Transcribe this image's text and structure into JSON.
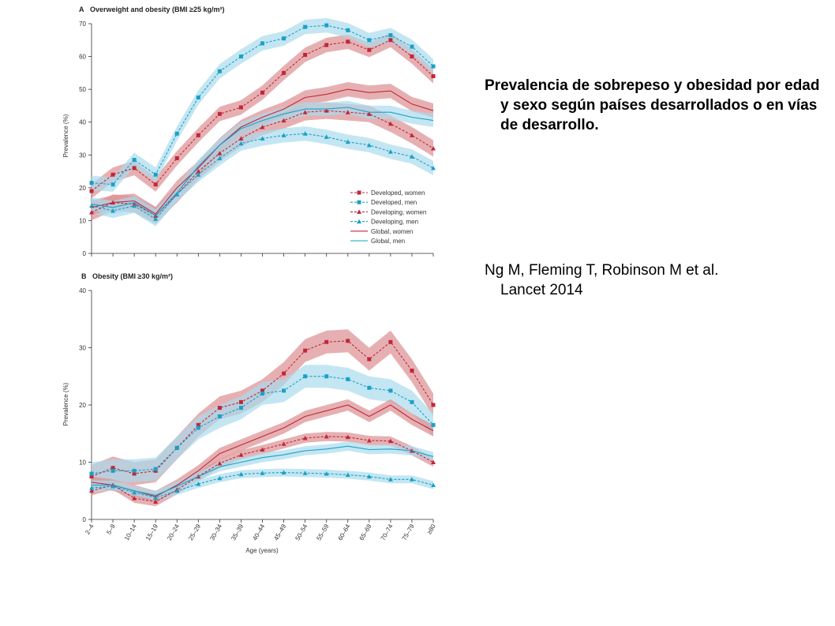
{
  "slide": {
    "heading": "Prevalencia de sobrepeso y obesidad por edad y sexo según países desarrollados o en vías de desarrollo.",
    "citation_line1": "Ng M, Fleming T, Robinson M et al.",
    "citation_line2": "Lancet 2014"
  },
  "colors": {
    "women": "#c0273a",
    "women_band": "#dc8e92",
    "men": "#1aa0c8",
    "men_band": "#a9dcec"
  },
  "chart_data": [
    {
      "type": "line",
      "panel_letter": "A",
      "title": "Overweight and obesity (BMI ≥25 kg/m²)",
      "xlabel": "",
      "ylabel": "Prevalence (%)",
      "ylim": [
        0,
        70
      ],
      "yticks": [
        "0",
        "10",
        "20",
        "30",
        "40",
        "50",
        "60",
        "70"
      ],
      "x": [
        "2–4",
        "5–9",
        "10–14",
        "15–19",
        "20–24",
        "25–29",
        "30–34",
        "35–39",
        "40–44",
        "45–49",
        "50–54",
        "55–59",
        "60–64",
        "65–69",
        "70–74",
        "75–79",
        "≥80"
      ],
      "legend": "inside-right",
      "series": [
        {
          "name": "Developed, women",
          "style": "dashed",
          "marker": "square",
          "color_key": "women",
          "values": [
            19,
            24,
            26,
            21,
            29,
            36,
            42.5,
            44.5,
            49,
            55,
            60.5,
            63.5,
            64.5,
            62,
            65,
            60,
            54
          ],
          "band": 2.2
        },
        {
          "name": "Developed, men",
          "style": "dashed",
          "marker": "square",
          "color_key": "men",
          "values": [
            21.5,
            21,
            28.5,
            24,
            36.5,
            47.5,
            55.5,
            60,
            64,
            65.5,
            69,
            69.5,
            68,
            65,
            66.5,
            63,
            57
          ],
          "band": 2.2
        },
        {
          "name": "Developing, women",
          "style": "dashed",
          "marker": "triangle",
          "color_key": "women",
          "values": [
            12.5,
            15.5,
            15,
            11.5,
            18,
            25,
            30.5,
            35,
            38.5,
            40.5,
            43,
            43.5,
            43,
            42.5,
            39.5,
            36,
            32
          ],
          "band": 2.5
        },
        {
          "name": "Developing, men",
          "style": "dashed",
          "marker": "triangle",
          "color_key": "men",
          "values": [
            14.5,
            13,
            14.5,
            10.5,
            18,
            24,
            29,
            33.5,
            35,
            36,
            36.5,
            35.5,
            34,
            33,
            31,
            29.5,
            26
          ],
          "band": 2.2
        },
        {
          "name": "Global, women",
          "style": "solid",
          "marker": "none",
          "color_key": "women",
          "values": [
            14,
            15.5,
            16,
            12,
            20,
            26,
            33,
            38.5,
            41.5,
            44,
            47.5,
            48.5,
            50,
            49,
            49.5,
            45.5,
            43.5
          ],
          "band": 2.2
        },
        {
          "name": "Global, men",
          "style": "solid",
          "marker": "none",
          "color_key": "men",
          "values": [
            15,
            14,
            15.5,
            11.5,
            18.5,
            26.5,
            33,
            38,
            40.5,
            42.5,
            44,
            44,
            44.5,
            43,
            43,
            41.5,
            40.5
          ],
          "band": 2.0
        }
      ]
    },
    {
      "type": "line",
      "panel_letter": "B",
      "title": "Obesity (BMI ≥30 kg/m²)",
      "xlabel": "Age (years)",
      "ylabel": "Prevalence (%)",
      "ylim": [
        0,
        40
      ],
      "yticks": [
        "0",
        "10",
        "20",
        "30",
        "40"
      ],
      "x": [
        "2–4",
        "5–9",
        "10–14",
        "15–19",
        "20–24",
        "25–29",
        "30–34",
        "35–39",
        "40–44",
        "45–49",
        "50–54",
        "55–59",
        "60–64",
        "65–69",
        "70–74",
        "75–79",
        "≥80"
      ],
      "series": [
        {
          "name": "Developed, women",
          "style": "dashed",
          "marker": "square",
          "color_key": "women",
          "values": [
            7.5,
            9,
            8,
            8.5,
            12.5,
            16.5,
            19.5,
            20.5,
            22.5,
            25.5,
            29.5,
            31,
            31.2,
            28,
            31,
            26,
            20
          ],
          "band": 2.0
        },
        {
          "name": "Developed, men",
          "style": "dashed",
          "marker": "square",
          "color_key": "men",
          "values": [
            8,
            8.5,
            8.5,
            8.8,
            12.5,
            16,
            18,
            19.5,
            22,
            22.5,
            25,
            25,
            24.5,
            23,
            22.5,
            20.5,
            16.5
          ],
          "band": 2.0
        },
        {
          "name": "Developing, women",
          "style": "dashed",
          "marker": "triangle",
          "color_key": "women",
          "values": [
            5,
            6,
            3.7,
            3.1,
            5.2,
            7.5,
            9.8,
            11.3,
            12.2,
            13.2,
            14.2,
            14.5,
            14.4,
            13.8,
            13.7,
            12,
            10
          ],
          "band": 0.8
        },
        {
          "name": "Developing, men",
          "style": "dashed",
          "marker": "triangle",
          "color_key": "men",
          "values": [
            5.5,
            5.8,
            4.7,
            3.8,
            5.0,
            6.2,
            7.2,
            7.9,
            8.1,
            8.2,
            8.1,
            8.0,
            7.8,
            7.5,
            7.0,
            7.0,
            6.0
          ],
          "band": 0.7
        },
        {
          "name": "Global, women",
          "style": "solid",
          "marker": "none",
          "color_key": "women",
          "values": [
            6.5,
            6.0,
            5.0,
            4.0,
            6.0,
            8.5,
            11.5,
            13,
            14.5,
            16,
            18,
            19,
            20,
            18,
            20,
            17.5,
            15.5
          ],
          "band": 1.0
        },
        {
          "name": "Global, men",
          "style": "solid",
          "marker": "none",
          "color_key": "men",
          "values": [
            6.0,
            6.0,
            5.0,
            4.2,
            5.8,
            7.5,
            9.2,
            10,
            10.8,
            11.3,
            12,
            12.3,
            12.8,
            12.2,
            12.3,
            12,
            11
          ],
          "band": 0.8
        }
      ]
    }
  ]
}
